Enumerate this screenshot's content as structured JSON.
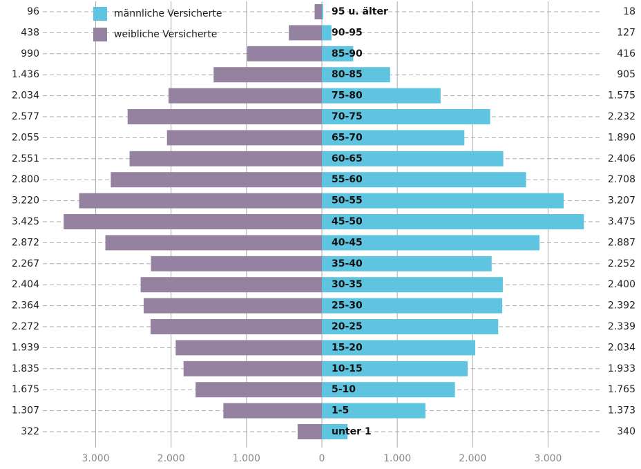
{
  "chart_data": {
    "type": "pyramid",
    "categories": [
      "95 u. älter",
      "90-95",
      "85-90",
      "80-85",
      "75-80",
      "70-75",
      "65-70",
      "60-65",
      "55-60",
      "50-55",
      "45-50",
      "40-45",
      "35-40",
      "30-35",
      "25-30",
      "20-25",
      "15-20",
      "10-15",
      "5-10",
      "1-5",
      "unter 1"
    ],
    "series": [
      {
        "name": "männliche Versicherte",
        "color": "#5ec4df",
        "values": [
          18,
          127,
          416,
          905,
          1575,
          2232,
          1890,
          2406,
          2708,
          3207,
          3475,
          2887,
          2252,
          2400,
          2392,
          2339,
          2034,
          1933,
          1765,
          1373,
          340
        ],
        "value_labels": [
          "18",
          "127",
          "416",
          "905",
          "1.575",
          "2.232",
          "1.890",
          "2.406",
          "2.708",
          "3.207",
          "3.475",
          "2.887",
          "2.252",
          "2.400",
          "2.392",
          "2.339",
          "2.034",
          "1.933",
          "1.765",
          "1.373",
          "340"
        ]
      },
      {
        "name": "weibliche Versicherte",
        "color": "#9482a0",
        "values": [
          96,
          438,
          990,
          1436,
          2034,
          2577,
          2055,
          2551,
          2800,
          3220,
          3425,
          2872,
          2267,
          2404,
          2364,
          2272,
          1939,
          1835,
          1675,
          1307,
          322
        ],
        "value_labels": [
          "96",
          "438",
          "990",
          "1.436",
          "2.034",
          "2.577",
          "2.055",
          "2.551",
          "2.800",
          "3.220",
          "3.425",
          "2.872",
          "2.267",
          "2.404",
          "2.364",
          "2.272",
          "1.939",
          "1.835",
          "1.675",
          "1.307",
          "322"
        ]
      }
    ],
    "xlim": [
      -3500,
      3500
    ],
    "xticks": [
      {
        "value": -3000,
        "label": "3.000"
      },
      {
        "value": -2000,
        "label": "2.000"
      },
      {
        "value": -1000,
        "label": "1.000"
      },
      0,
      {
        "value": 1000,
        "label": "1.000"
      },
      {
        "value": 2000,
        "label": "2.000"
      },
      {
        "value": 3000,
        "label": "3.000"
      }
    ],
    "grid": true
  }
}
